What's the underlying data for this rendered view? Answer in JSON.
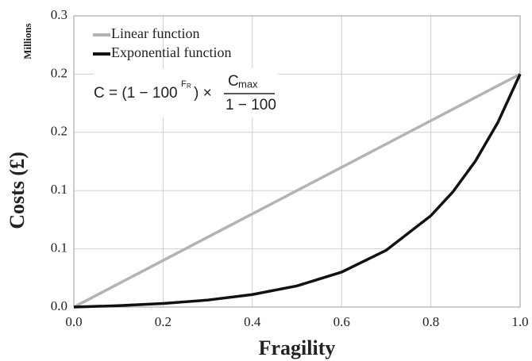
{
  "chart_data": {
    "type": "line",
    "y_axis_unit": "Millions",
    "y_label": "Costs (£)",
    "x_label": "Fragility",
    "xlim": [
      0,
      1
    ],
    "xticks": [
      {
        "value": 0,
        "label": "0.0"
      },
      0.2,
      0.4,
      0.6,
      0.8,
      {
        "value": 1,
        "label": "1.0"
      }
    ],
    "ylim": [
      0,
      0.3
    ],
    "yticks": [
      {
        "value": 0,
        "label": "0.0"
      },
      {
        "value": 0.06,
        "label": "0.1"
      },
      {
        "value": 0.12,
        "label": "0.1"
      },
      {
        "value": 0.18,
        "label": "0.2"
      },
      {
        "value": 0.24,
        "label": "0.2"
      },
      0.3
    ],
    "grid": true,
    "legend": "upper left",
    "series": [
      {
        "name": "Linear function",
        "color": "#b3b3b3",
        "x": [
          0,
          1
        ],
        "values": [
          0,
          0.24
        ]
      },
      {
        "name": "Exponential function",
        "color": "#111111",
        "x": [
          0,
          0.1,
          0.2,
          0.3,
          0.4,
          0.5,
          0.6,
          0.7,
          0.8,
          0.85,
          0.9,
          0.95,
          1
        ],
        "values": [
          0,
          0.0014,
          0.0037,
          0.0072,
          0.0129,
          0.0218,
          0.036,
          0.0585,
          0.0941,
          0.119,
          0.1505,
          0.19,
          0.24
        ]
      }
    ],
    "formula": {
      "left": "C = (1 − 100",
      "exponent": "F",
      "exponent_sub": "R",
      "times": ") ×",
      "numerator": "C",
      "numerator_sub": "max",
      "denominator": "1 − 100"
    }
  }
}
